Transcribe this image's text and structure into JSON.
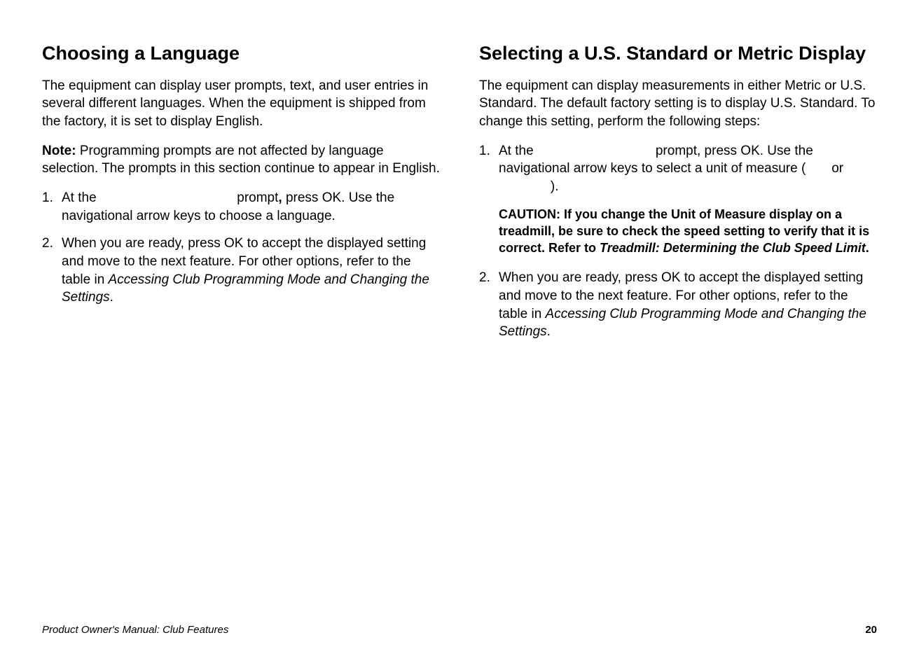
{
  "left": {
    "heading": "Choosing a Language",
    "intro": "The equipment can display user prompts, text, and user entries in several different languages. When the equipment is shipped from the factory, it is set to display English.",
    "note_label": "Note:",
    "note_body": " Programming prompts are not affected by language selection. The prompts in this section continue to appear in English.",
    "step1_a": "At the ",
    "step1_gap": "                                    ",
    "step1_b": " prompt",
    "step1_c": ", press OK. Use the navigational arrow keys to choose a language.",
    "step2_a": "When you are ready, press OK to accept the displayed setting and move to the next feature. For other options, refer to the table in ",
    "step2_ref": "Accessing Club Programming Mode and Changing the Settings",
    "step2_b": "."
  },
  "right": {
    "heading": "Selecting a U.S. Standard or Metric Display",
    "intro": "The equipment can display measurements in either Metric or U.S. Standard. The default factory setting is to display U.S. Standard. To change this setting, perform the following steps:",
    "step1_a": "At the ",
    "step1_gap1": "                               ",
    "step1_b": " prompt, press OK. Use the navigational arrow keys to select a unit of measure (",
    "step1_gap2": "       ",
    "step1_c": "or",
    "step1_gap3": "              ",
    "step1_d": ").",
    "caution_a": "CAUTION: If you change the Unit of Measure display on a treadmill, be sure to check the speed setting to verify that it is correct. Refer to ",
    "caution_ref": "Treadmill: Determining the Club Speed Limit",
    "caution_b": ".",
    "step2_a": "When you are ready, press OK to accept the displayed setting and move to the next feature. For other options, refer to the table in ",
    "step2_ref": "Accessing Club Programming Mode and Changing the Settings",
    "step2_b": "."
  },
  "footer": {
    "left": "Product Owner's Manual: Club Features",
    "page": "20"
  }
}
